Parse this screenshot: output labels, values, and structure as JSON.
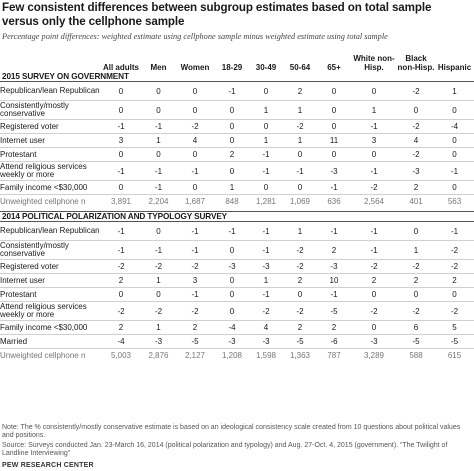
{
  "title": "Few consistent differences between subgroup estimates based on total sample versus only the cellphone sample",
  "subtitle": "Percentage point differences: weighted estimate using cellphone sample minus weighted estimate using total sample",
  "columns": [
    "All adults",
    "Men",
    "Women",
    "18-29",
    "30-49",
    "50-64",
    "65+",
    "White non-Hisp.",
    "Black non-Hisp.",
    "Hispanic"
  ],
  "chart_data": {
    "type": "table",
    "title": "Few consistent differences between subgroup estimates based on total sample versus only the cellphone sample",
    "subtitle": "Percentage point differences: weighted estimate using cellphone sample minus weighted estimate using total sample",
    "columns": [
      "All adults",
      "Men",
      "Women",
      "18-29",
      "30-49",
      "50-64",
      "65+",
      "White non-Hisp.",
      "Black non-Hisp.",
      "Hispanic"
    ],
    "sections": [
      {
        "heading": "2015 SURVEY ON GOVERNMENT",
        "rows": [
          {
            "label": "Republican/lean Republican",
            "values": [
              "0",
              "0",
              "0",
              "-1",
              "0",
              "2",
              "0",
              "0",
              "-2",
              "1"
            ]
          },
          {
            "label": "Consistently/mostly conservative",
            "values": [
              "0",
              "0",
              "0",
              "0",
              "1",
              "1",
              "0",
              "1",
              "0",
              "0"
            ]
          },
          {
            "label": "Registered voter",
            "values": [
              "-1",
              "-1",
              "-2",
              "0",
              "0",
              "-2",
              "0",
              "-1",
              "-2",
              "-4"
            ]
          },
          {
            "label": "Internet user",
            "values": [
              "3",
              "1",
              "4",
              "0",
              "1",
              "1",
              "11",
              "3",
              "4",
              "0"
            ]
          },
          {
            "label": "Protestant",
            "values": [
              "0",
              "0",
              "0",
              "2",
              "-1",
              "0",
              "0",
              "0",
              "-2",
              "0"
            ]
          },
          {
            "label": "Attend religious services weekly or more",
            "values": [
              "-1",
              "-1",
              "-1",
              "0",
              "-1",
              "-1",
              "-3",
              "-1",
              "-3",
              "-1"
            ]
          },
          {
            "label": "Family income <$30,000",
            "values": [
              "0",
              "-1",
              "0",
              "1",
              "0",
              "0",
              "-1",
              "-2",
              "2",
              "0"
            ]
          }
        ],
        "unweighted_label": "Unweighted cellphone n",
        "unweighted": [
          "3,891",
          "2,204",
          "1,687",
          "848",
          "1,281",
          "1,069",
          "636",
          "2,564",
          "401",
          "563"
        ]
      },
      {
        "heading": "2014 POLITICAL POLARIZATION AND TYPOLOGY SURVEY",
        "rows": [
          {
            "label": "Republican/lean Republican",
            "values": [
              "-1",
              "0",
              "-1",
              "-1",
              "-1",
              "1",
              "-1",
              "-1",
              "0",
              "-1"
            ]
          },
          {
            "label": "Consistently/mostly conservative",
            "values": [
              "-1",
              "-1",
              "-1",
              "0",
              "-1",
              "-2",
              "2",
              "-1",
              "1",
              "-2"
            ]
          },
          {
            "label": "Registered voter",
            "values": [
              "-2",
              "-2",
              "-2",
              "-3",
              "-3",
              "-2",
              "-3",
              "-2",
              "-2",
              "-2"
            ]
          },
          {
            "label": "Internet user",
            "values": [
              "2",
              "1",
              "3",
              "0",
              "1",
              "2",
              "10",
              "2",
              "2",
              "2"
            ]
          },
          {
            "label": "Protestant",
            "values": [
              "0",
              "0",
              "-1",
              "0",
              "-1",
              "0",
              "-1",
              "0",
              "0",
              "0"
            ]
          },
          {
            "label": "Attend religious services weekly or more",
            "values": [
              "-2",
              "-2",
              "-2",
              "0",
              "-2",
              "-2",
              "-5",
              "-2",
              "-2",
              "-2"
            ]
          },
          {
            "label": "Family income <$30,000",
            "values": [
              "2",
              "1",
              "2",
              "-4",
              "4",
              "2",
              "2",
              "0",
              "6",
              "5"
            ]
          },
          {
            "label": "Married",
            "values": [
              "-4",
              "-3",
              "-5",
              "-3",
              "-3",
              "-5",
              "-6",
              "-3",
              "-5",
              "-5"
            ]
          }
        ],
        "unweighted_label": "Unweighted cellphone n",
        "unweighted": [
          "5,003",
          "2,876",
          "2,127",
          "1,208",
          "1,598",
          "1,363",
          "787",
          "3,289",
          "588",
          "615"
        ]
      }
    ]
  },
  "note": "Note: The % consistently/mostly conservative estimate is based on an ideological consistency scale created from 10 questions about political values and positions.",
  "source": "Source: Surveys conducted Jan. 23-March 16, 2014 (political polarization and typology) and Aug. 27-Oct. 4, 2015 (government). “The Twilight of Landline Interviewing”",
  "credit": "PEW RESEARCH CENTER"
}
